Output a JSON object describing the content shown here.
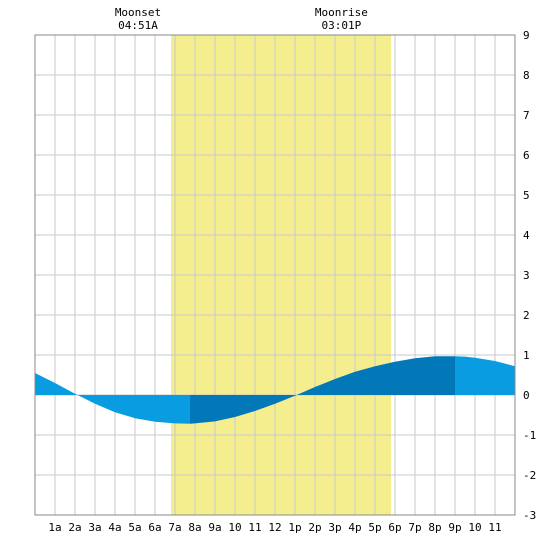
{
  "chart_data": {
    "type": "area",
    "title": "",
    "xlabel": "",
    "ylabel": "",
    "x_ticks": [
      "1a",
      "2a",
      "3a",
      "4a",
      "5a",
      "6a",
      "7a",
      "8a",
      "9a",
      "10",
      "11",
      "12",
      "1p",
      "2p",
      "3p",
      "4p",
      "5p",
      "6p",
      "7p",
      "8p",
      "9p",
      "10",
      "11"
    ],
    "xlim_hours": [
      0,
      24
    ],
    "ylim": [
      -3,
      9
    ],
    "y_ticks": [
      -3,
      -2,
      -1,
      0,
      1,
      2,
      3,
      4,
      5,
      6,
      7,
      8,
      9
    ],
    "grid": true,
    "daylight_hours": [
      6.8,
      17.8
    ],
    "events": [
      {
        "label": "Moonset",
        "time": "04:51A",
        "hour": 4.85
      },
      {
        "label": "Moonrise",
        "time": "03:01P",
        "hour": 15.02
      }
    ],
    "series": [
      {
        "x_hours": [
          0,
          1,
          2,
          3,
          4,
          5,
          6,
          7,
          7.75,
          8,
          9,
          10,
          11,
          12,
          13,
          14,
          15,
          16,
          17,
          18,
          19,
          20,
          21,
          21.5,
          22,
          23,
          24
        ],
        "values": [
          0.55,
          0.3,
          0.03,
          -0.22,
          -0.43,
          -0.58,
          -0.67,
          -0.71,
          -0.72,
          -0.71,
          -0.66,
          -0.55,
          -0.4,
          -0.22,
          -0.02,
          0.2,
          0.4,
          0.58,
          0.72,
          0.83,
          0.92,
          0.97,
          0.97,
          0.96,
          0.93,
          0.85,
          0.72
        ]
      }
    ],
    "colors": {
      "daylight": "#f5ee8f",
      "tide_dark": "#0378b8",
      "tide_light": "#0a9ce0",
      "grid": "#c8c8c8",
      "border": "#888888"
    }
  }
}
